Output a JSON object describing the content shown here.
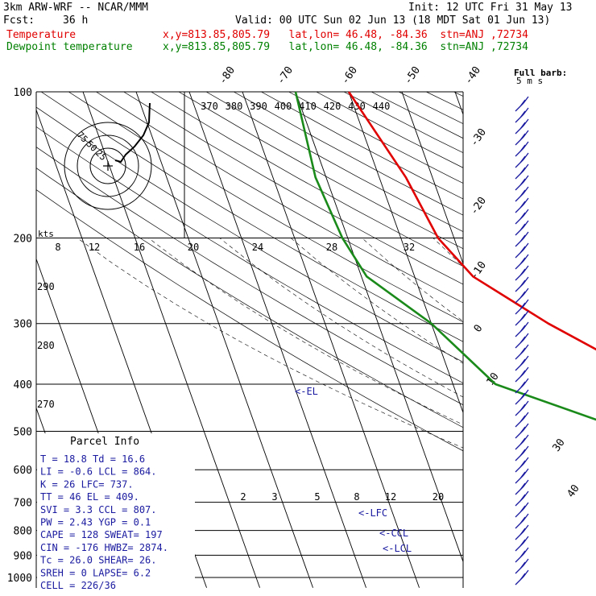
{
  "header": {
    "model": "3km ARW-WRF -- NCAR/MMM",
    "init": "Init: 12 UTC Fri 31 May 13",
    "fcst_label": "Fcst:",
    "fcst_value": "36 h",
    "valid": "Valid: 00 UTC Sun 02 Jun 13 (18 MDT Sat 01 Jun 13)",
    "temp_label": "Temperature",
    "temp_info": "x,y=813.85,805.79   lat,lon= 46.48, -84.36  stn=ANJ ,72734",
    "dew_label": "Dewpoint temperature",
    "dew_info": "x,y=813.85,805.79   lat,lon= 46.48, -84.36  stn=ANJ ,72734"
  },
  "colors": {
    "temperature": "#e00000",
    "dewpoint": "#1a8a1a",
    "barbs": "#1a1aa0",
    "parcel_text": "#1a1aa0",
    "grid": "#000000"
  },
  "barb_legend": {
    "line1": "Full barb:",
    "line2": "5 m s"
  },
  "hodo_label": "kts",
  "chart_data": {
    "type": "line",
    "title": "",
    "pressure_ticks": [
      "100",
      "200",
      "300",
      "400",
      "500",
      "600",
      "700",
      "800",
      "900",
      "1000"
    ],
    "pressure_values": [
      100,
      200,
      300,
      400,
      500,
      600,
      700,
      800,
      900,
      1000
    ],
    "isotherm_labels": [
      "-80",
      "-70",
      "-60",
      "-50",
      "-40",
      "-30",
      "-20",
      "-10",
      "0",
      "10",
      "30",
      "40"
    ],
    "theta_labels": [
      "370",
      "380",
      "390",
      "400",
      "410",
      "420",
      "430",
      "440"
    ],
    "thetae_labels": [
      "8",
      "12",
      "16",
      "20",
      "24",
      "28",
      "32"
    ],
    "side_theta_labels": [
      "290",
      "280",
      "270"
    ],
    "mixing_ratio_labels": [
      "2",
      "3",
      "5",
      "8",
      "12",
      "20"
    ],
    "level_markers": [
      "<-EL",
      "<-LFC",
      "<-CCL",
      "<-LCL"
    ],
    "series": [
      {
        "name": "Temperature",
        "pressure": [
          100,
          150,
          200,
          240,
          300,
          400,
          500,
          600,
          700,
          800,
          850,
          900,
          925,
          950,
          975
        ],
        "temp_c": [
          -60,
          -55,
          -53,
          -49,
          -38,
          -21,
          -9,
          1,
          10,
          17,
          22,
          23,
          23.5,
          22,
          19
        ]
      },
      {
        "name": "Dewpoint temperature",
        "pressure": [
          100,
          150,
          200,
          240,
          300,
          400,
          500,
          600,
          700,
          800,
          850,
          900,
          925,
          950,
          975
        ],
        "temp_c": [
          -70,
          -72,
          -71,
          -69,
          -60,
          -52,
          -30,
          -12,
          0,
          5,
          10,
          11,
          13,
          15,
          16.6
        ]
      }
    ]
  },
  "parcel": {
    "title": "Parcel Info",
    "rows": [
      [
        "T  =    18.8 Td =  16.6"
      ],
      [
        "LI =    -0.6 LCL =  864."
      ],
      [
        "K  =      26 LFC= 737."
      ],
      [
        "TT =      46 EL  =  409."
      ],
      [
        "SVI =    3.3 CCL =  807."
      ],
      [
        "PW =    2.43 YGP =   0.1"
      ],
      [
        "CAPE =   128 SWEAT=  197"
      ],
      [
        "CIN =   -176 HWBZ= 2874."
      ],
      [
        "Tc =    26.0 SHEAR=  26."
      ],
      [
        "SREH =     0 LAPSE=  6.2"
      ],
      [
        "CELL = 226/36"
      ]
    ]
  },
  "hodograph": {
    "ring_labels": [
      "75",
      "50",
      "25"
    ]
  }
}
